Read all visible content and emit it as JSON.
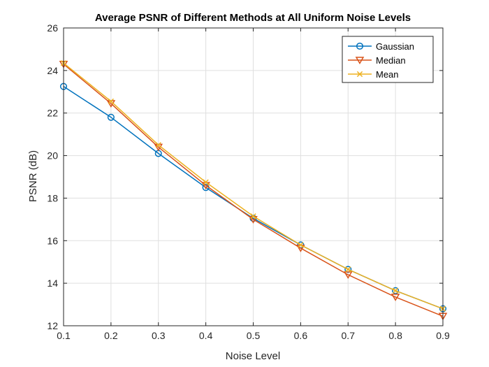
{
  "chart_data": {
    "type": "line",
    "title": "Average PSNR of Different Methods at All Uniform Noise Levels",
    "xlabel": "Noise Level",
    "ylabel": "PSNR (dB)",
    "xlim": [
      0.1,
      0.9
    ],
    "ylim": [
      12,
      26
    ],
    "x_ticks": [
      "0.1",
      "0.2",
      "0.3",
      "0.4",
      "0.5",
      "0.6",
      "0.7",
      "0.8",
      "0.9"
    ],
    "y_ticks": [
      "12",
      "14",
      "16",
      "18",
      "20",
      "22",
      "24",
      "26"
    ],
    "grid": true,
    "legend_position": "top-right",
    "x": [
      0.1,
      0.2,
      0.3,
      0.4,
      0.5,
      0.6,
      0.7,
      0.8,
      0.9
    ],
    "series": [
      {
        "name": "Gaussian",
        "color": "#0072BD",
        "marker": "circle",
        "values": [
          23.25,
          21.8,
          20.1,
          18.5,
          17.05,
          15.8,
          14.65,
          13.65,
          12.8
        ]
      },
      {
        "name": "Median",
        "color": "#D95319",
        "marker": "triangle-down",
        "values": [
          24.3,
          22.45,
          20.4,
          18.6,
          17.0,
          15.65,
          14.4,
          13.35,
          12.45
        ]
      },
      {
        "name": "Mean",
        "color": "#EDB120",
        "marker": "x",
        "values": [
          24.35,
          22.55,
          20.5,
          18.75,
          17.15,
          15.8,
          14.65,
          13.65,
          12.8
        ]
      }
    ]
  }
}
